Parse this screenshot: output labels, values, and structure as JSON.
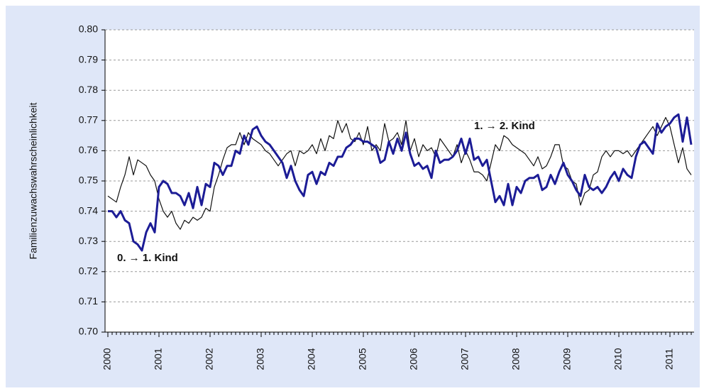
{
  "chart_data": {
    "type": "line",
    "y_label": "Familienzuwachswahrscheinlichkeit",
    "categories": [
      "2000",
      null,
      null,
      null,
      null,
      null,
      null,
      null,
      null,
      null,
      null,
      null,
      "2001",
      null,
      null,
      null,
      null,
      null,
      null,
      null,
      null,
      null,
      null,
      null,
      "2002",
      null,
      null,
      null,
      null,
      null,
      null,
      null,
      null,
      null,
      null,
      null,
      "2003",
      null,
      null,
      null,
      null,
      null,
      null,
      null,
      null,
      null,
      null,
      null,
      "2004",
      null,
      null,
      null,
      null,
      null,
      null,
      null,
      null,
      null,
      null,
      null,
      "2005",
      null,
      null,
      null,
      null,
      null,
      null,
      null,
      null,
      null,
      null,
      null,
      "2006",
      null,
      null,
      null,
      null,
      null,
      null,
      null,
      null,
      null,
      null,
      null,
      "2007",
      null,
      null,
      null,
      null,
      null,
      null,
      null,
      null,
      null,
      null,
      null,
      "2008",
      null,
      null,
      null,
      null,
      null,
      null,
      null,
      null,
      null,
      null,
      null,
      "2009",
      null,
      null,
      null,
      null,
      null,
      null,
      null,
      null,
      null,
      null,
      null,
      "2010",
      null,
      null,
      null,
      null,
      null,
      null,
      null,
      null,
      null,
      null,
      null,
      "2011",
      null,
      null,
      null,
      null,
      null
    ],
    "series": [
      {
        "name": "0. → 1. Kind",
        "color": "#1c1c96",
        "values": [
          0.74,
          0.74,
          0.738,
          0.74,
          0.737,
          0.736,
          0.73,
          0.729,
          0.727,
          0.733,
          0.736,
          0.733,
          0.748,
          0.75,
          0.749,
          0.746,
          0.746,
          0.745,
          0.742,
          0.746,
          0.741,
          0.748,
          0.742,
          0.749,
          0.748,
          0.756,
          0.755,
          0.752,
          0.755,
          0.755,
          0.76,
          0.759,
          0.765,
          0.762,
          0.767,
          0.768,
          0.765,
          0.763,
          0.762,
          0.76,
          0.758,
          0.756,
          0.751,
          0.755,
          0.75,
          0.747,
          0.745,
          0.752,
          0.753,
          0.749,
          0.753,
          0.752,
          0.756,
          0.755,
          0.758,
          0.758,
          0.761,
          0.762,
          0.764,
          0.764,
          0.763,
          0.763,
          0.762,
          0.761,
          0.756,
          0.757,
          0.763,
          0.759,
          0.764,
          0.76,
          0.766,
          0.759,
          0.755,
          0.756,
          0.754,
          0.755,
          0.751,
          0.76,
          0.756,
          0.757,
          0.757,
          0.758,
          0.76,
          0.764,
          0.759,
          0.764,
          0.757,
          0.758,
          0.755,
          0.757,
          0.75,
          0.743,
          0.745,
          0.742,
          0.749,
          0.742,
          0.748,
          0.746,
          0.75,
          0.751,
          0.751,
          0.752,
          0.747,
          0.748,
          0.752,
          0.749,
          0.753,
          0.756,
          0.752,
          0.75,
          0.747,
          0.745,
          0.752,
          0.748,
          0.747,
          0.748,
          0.746,
          0.748,
          0.751,
          0.753,
          0.75,
          0.754,
          0.752,
          0.751,
          0.758,
          0.762,
          0.763,
          0.761,
          0.759,
          0.769,
          0.766,
          0.768,
          0.769,
          0.771,
          0.772,
          0.763,
          0.771,
          0.762
        ]
      },
      {
        "name": "1. → 2. Kind",
        "color": "#111111",
        "values": [
          0.745,
          0.744,
          0.743,
          0.748,
          0.752,
          0.758,
          0.752,
          0.757,
          0.756,
          0.755,
          0.752,
          0.75,
          0.744,
          0.74,
          0.738,
          0.74,
          0.736,
          0.734,
          0.737,
          0.736,
          0.738,
          0.737,
          0.738,
          0.741,
          0.74,
          0.748,
          0.752,
          0.757,
          0.761,
          0.762,
          0.762,
          0.766,
          0.762,
          0.766,
          0.764,
          0.763,
          0.762,
          0.76,
          0.759,
          0.757,
          0.755,
          0.757,
          0.759,
          0.76,
          0.755,
          0.76,
          0.759,
          0.76,
          0.762,
          0.759,
          0.764,
          0.76,
          0.765,
          0.764,
          0.77,
          0.766,
          0.769,
          0.764,
          0.763,
          0.766,
          0.762,
          0.768,
          0.76,
          0.762,
          0.76,
          0.769,
          0.763,
          0.764,
          0.766,
          0.762,
          0.77,
          0.76,
          0.764,
          0.758,
          0.762,
          0.76,
          0.761,
          0.758,
          0.764,
          0.762,
          0.76,
          0.758,
          0.762,
          0.756,
          0.76,
          0.757,
          0.753,
          0.753,
          0.752,
          0.75,
          0.756,
          0.762,
          0.76,
          0.765,
          0.764,
          0.762,
          0.761,
          0.76,
          0.759,
          0.757,
          0.755,
          0.758,
          0.754,
          0.755,
          0.758,
          0.762,
          0.762,
          0.755,
          0.754,
          0.75,
          0.749,
          0.742,
          0.746,
          0.747,
          0.752,
          0.753,
          0.758,
          0.76,
          0.758,
          0.76,
          0.76,
          0.759,
          0.76,
          0.758,
          0.76,
          0.762,
          0.764,
          0.766,
          0.768,
          0.765,
          0.768,
          0.771,
          0.768,
          0.762,
          0.756,
          0.761,
          0.754,
          0.752
        ]
      }
    ],
    "ylim": [
      0.7,
      0.8
    ],
    "yticks": [
      {
        "value": 0.7,
        "label": "0.70"
      },
      0.71,
      0.72,
      0.73,
      0.74,
      0.75,
      0.76,
      0.77,
      0.78,
      0.79,
      {
        "value": 0.8,
        "label": "0.80"
      }
    ],
    "grid": true
  }
}
